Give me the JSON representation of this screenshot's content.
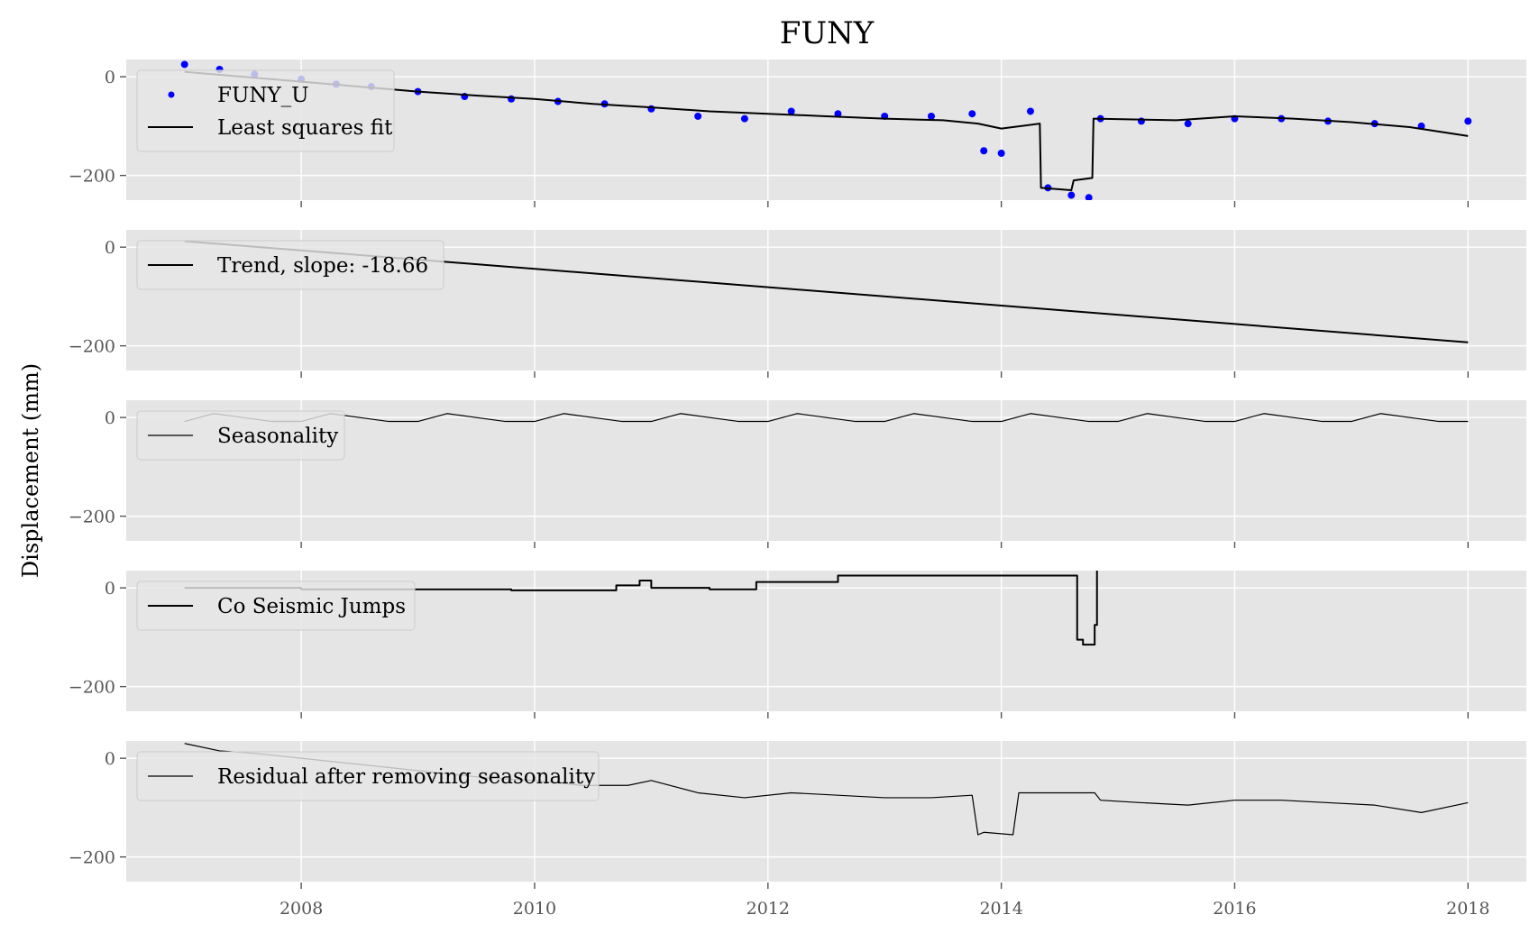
{
  "chart_data": {
    "type": "line",
    "title": "FUNY",
    "ylabel": "Displacement (mm)",
    "xlim": [
      2006.5,
      2018.5
    ],
    "ylim": [
      -250,
      35
    ],
    "x_ticks": [
      2008,
      2010,
      2012,
      2014,
      2016,
      2018
    ],
    "x_tick_labels": [
      "2008",
      "2010",
      "2012",
      "2014",
      "2016",
      "2018"
    ],
    "y_ticks": [
      0,
      -200
    ],
    "y_tick_labels": [
      "0",
      "−200"
    ],
    "grid": true,
    "legend_placement": "upper-left",
    "colors": {
      "background": "#e5e5e5",
      "grid": "#ffffff",
      "observed": "#0000ff",
      "line": "#000000"
    },
    "panels": [
      {
        "id": "observed-and-fit",
        "series": [
          {
            "name": "FUNY_U",
            "kind": "scatter",
            "color": "#0000ff",
            "x": [
              2007.0,
              2007.3,
              2007.6,
              2008.0,
              2008.3,
              2008.6,
              2009.0,
              2009.4,
              2009.8,
              2010.2,
              2010.6,
              2011.0,
              2011.4,
              2011.8,
              2012.2,
              2012.6,
              2013.0,
              2013.4,
              2013.75,
              2013.85,
              2014.0,
              2014.25,
              2014.4,
              2014.6,
              2014.75,
              2014.85,
              2015.2,
              2015.6,
              2016.0,
              2016.4,
              2016.8,
              2017.2,
              2017.6,
              2018.0
            ],
            "y": [
              25,
              15,
              5,
              -5,
              -15,
              -20,
              -30,
              -40,
              -45,
              -50,
              -55,
              -65,
              -80,
              -85,
              -70,
              -75,
              -80,
              -80,
              -75,
              -150,
              -155,
              -70,
              -225,
              -240,
              -245,
              -85,
              -90,
              -95,
              -85,
              -85,
              -90,
              -95,
              -100,
              -90
            ]
          },
          {
            "name": "Least squares fit",
            "kind": "line",
            "color": "#000000",
            "x": [
              2007.0,
              2007.5,
              2008.0,
              2008.5,
              2009.0,
              2009.5,
              2010.0,
              2010.5,
              2011.0,
              2011.5,
              2012.0,
              2012.5,
              2013.0,
              2013.5,
              2013.8,
              2014.0,
              2014.33,
              2014.34,
              2014.6,
              2014.62,
              2014.78,
              2014.79,
              2015.5,
              2016.0,
              2016.5,
              2017.0,
              2017.5,
              2018.0
            ],
            "y": [
              10,
              0,
              -10,
              -20,
              -30,
              -38,
              -45,
              -55,
              -62,
              -70,
              -75,
              -80,
              -85,
              -88,
              -95,
              -105,
              -95,
              -225,
              -230,
              -210,
              -205,
              -85,
              -88,
              -80,
              -85,
              -92,
              -102,
              -120
            ]
          }
        ]
      },
      {
        "id": "trend",
        "series": [
          {
            "name": "Trend, slope: -18.66",
            "kind": "line",
            "color": "#000000",
            "x": [
              2007.0,
              2018.0
            ],
            "y": [
              12,
              -193
            ]
          }
        ]
      },
      {
        "id": "seasonality",
        "series": [
          {
            "name": "Seasonality",
            "kind": "line",
            "color": "#000000",
            "x": [
              2007.0,
              2007.25,
              2007.5,
              2007.75,
              2008.0,
              2008.25,
              2008.5,
              2008.75,
              2009.0,
              2009.25,
              2009.5,
              2009.75,
              2010.0,
              2010.25,
              2010.5,
              2010.75,
              2011.0,
              2011.25,
              2011.5,
              2011.75,
              2012.0,
              2012.25,
              2012.5,
              2012.75,
              2013.0,
              2013.25,
              2013.5,
              2013.75,
              2014.0,
              2014.25,
              2014.5,
              2014.75,
              2015.0,
              2015.25,
              2015.5,
              2015.75,
              2016.0,
              2016.25,
              2016.5,
              2016.75,
              2017.0,
              2017.25,
              2017.5,
              2017.75,
              2018.0
            ],
            "y": [
              -8,
              8,
              0,
              -8,
              -8,
              8,
              0,
              -8,
              -8,
              8,
              0,
              -8,
              -8,
              8,
              0,
              -8,
              -8,
              8,
              0,
              -8,
              -8,
              8,
              0,
              -8,
              -8,
              8,
              0,
              -8,
              -8,
              8,
              0,
              -8,
              -8,
              8,
              0,
              -8,
              -8,
              8,
              0,
              -8,
              -8,
              8,
              0,
              -8,
              -8
            ]
          }
        ]
      },
      {
        "id": "co-seismic-jumps",
        "series": [
          {
            "name": "Co Seismic Jumps",
            "kind": "step",
            "color": "#000000",
            "x": [
              2007.0,
              2008.0,
              2009.8,
              2010.7,
              2010.9,
              2011.0,
              2011.5,
              2011.9,
              2012.6,
              2014.35,
              2014.65,
              2014.7,
              2014.8,
              2014.82
            ],
            "y": [
              0,
              -3,
              -5,
              5,
              15,
              0,
              -3,
              12,
              25,
              25,
              -105,
              -115,
              -75,
              35
            ]
          }
        ]
      },
      {
        "id": "residual",
        "series": [
          {
            "name": "Residual after removing seasonality",
            "kind": "line",
            "color": "#000000",
            "x": [
              2007.0,
              2007.3,
              2007.6,
              2008.0,
              2008.4,
              2008.8,
              2009.2,
              2009.6,
              2010.0,
              2010.4,
              2010.8,
              2011.0,
              2011.4,
              2011.8,
              2012.2,
              2012.6,
              2013.0,
              2013.4,
              2013.75,
              2013.8,
              2013.85,
              2014.1,
              2014.15,
              2014.3,
              2014.6,
              2014.8,
              2014.85,
              2015.2,
              2015.6,
              2016.0,
              2016.4,
              2016.8,
              2017.2,
              2017.6,
              2018.0
            ],
            "y": [
              30,
              15,
              10,
              0,
              -10,
              -20,
              -30,
              -40,
              -45,
              -55,
              -55,
              -45,
              -70,
              -80,
              -70,
              -75,
              -80,
              -80,
              -75,
              -155,
              -150,
              -155,
              -70,
              -70,
              -70,
              -70,
              -85,
              -90,
              -95,
              -85,
              -85,
              -90,
              -95,
              -110,
              -90
            ]
          }
        ]
      }
    ]
  }
}
